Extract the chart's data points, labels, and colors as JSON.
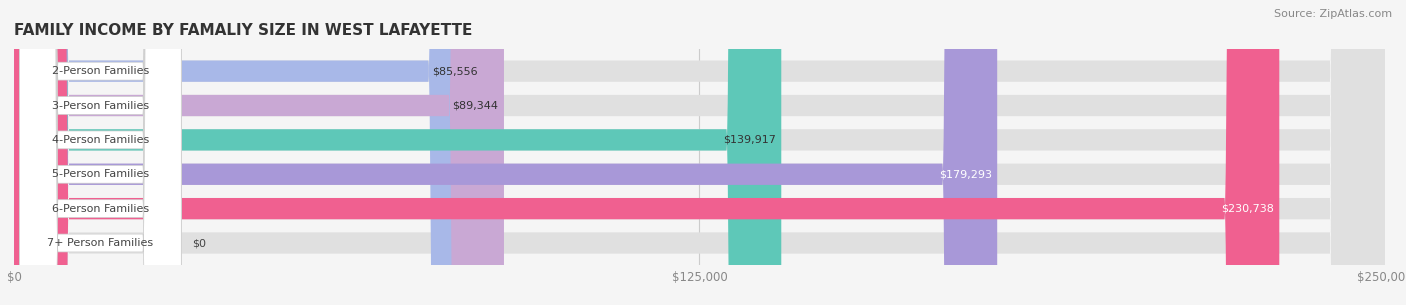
{
  "title": "FAMILY INCOME BY FAMALIY SIZE IN WEST LAFAYETTE",
  "source": "Source: ZipAtlas.com",
  "categories": [
    "2-Person Families",
    "3-Person Families",
    "4-Person Families",
    "5-Person Families",
    "6-Person Families",
    "7+ Person Families"
  ],
  "values": [
    85556,
    89344,
    139917,
    179293,
    230738,
    0
  ],
  "bar_colors": [
    "#a8b8e8",
    "#c9a8d4",
    "#5ec8b8",
    "#a898d8",
    "#f06090",
    "#f0c898"
  ],
  "label_colors": [
    "#333333",
    "#333333",
    "#333333",
    "#ffffff",
    "#ffffff",
    "#333333"
  ],
  "value_labels": [
    "$85,556",
    "$89,344",
    "$139,917",
    "$179,293",
    "$230,738",
    "$0"
  ],
  "xlim": [
    0,
    250000
  ],
  "xticks": [
    0,
    125000,
    250000
  ],
  "xtick_labels": [
    "$0",
    "$125,000",
    "$250,000"
  ],
  "bar_height": 0.62,
  "background_color": "#f5f5f5",
  "bar_background_color": "#e0e0e0",
  "title_fontsize": 11,
  "label_fontsize": 8.0,
  "value_fontsize": 8.0,
  "source_fontsize": 8
}
